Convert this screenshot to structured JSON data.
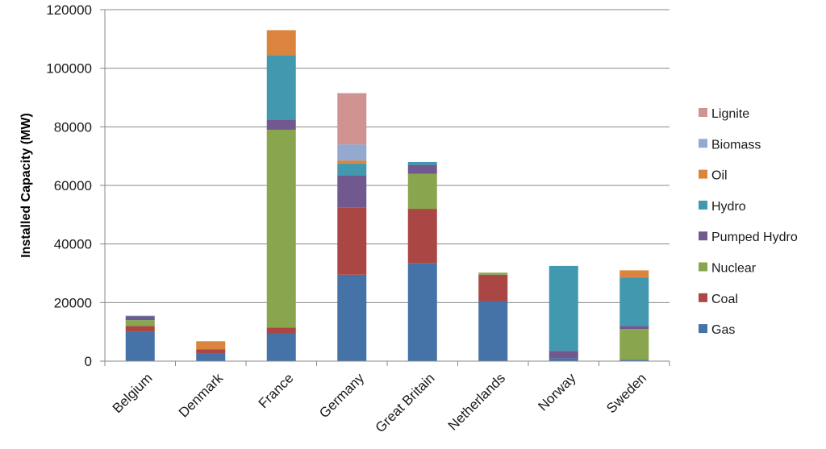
{
  "chart_data": {
    "type": "bar",
    "stacked": true,
    "title": "",
    "xlabel": "",
    "ylabel": "Installed Capacity (MW)",
    "ylim": [
      0,
      120000
    ],
    "yticks": [
      0,
      20000,
      40000,
      60000,
      80000,
      100000,
      120000
    ],
    "grid": true,
    "legend_position": "right",
    "categories": [
      "Belgium",
      "Denmark",
      "France",
      "Germany",
      "Great Britain",
      "Netherlands",
      "Norway",
      "Sweden"
    ],
    "series": [
      {
        "name": "Gas",
        "color": "#4572A7",
        "values": [
          10000,
          2500,
          9500,
          29500,
          33500,
          20500,
          1000,
          500
        ]
      },
      {
        "name": "Coal",
        "color": "#AA4643",
        "values": [
          2000,
          1500,
          2000,
          23000,
          18500,
          9000,
          0,
          0
        ]
      },
      {
        "name": "Nuclear",
        "color": "#89A54E",
        "values": [
          2000,
          0,
          67500,
          0,
          12000,
          700,
          0,
          10500
        ]
      },
      {
        "name": "Pumped Hydro",
        "color": "#71588F",
        "values": [
          1300,
          0,
          3500,
          11000,
          3000,
          0,
          2500,
          1000
        ]
      },
      {
        "name": "Hydro",
        "color": "#4198AF",
        "values": [
          200,
          0,
          22000,
          4000,
          1000,
          0,
          29000,
          16500
        ]
      },
      {
        "name": "Oil",
        "color": "#DB843D",
        "values": [
          0,
          2800,
          8500,
          1000,
          0,
          0,
          0,
          2500
        ]
      },
      {
        "name": "Biomass",
        "color": "#93A9CF",
        "values": [
          0,
          0,
          0,
          5500,
          0,
          0,
          0,
          0
        ]
      },
      {
        "name": "Lignite",
        "color": "#D19392",
        "values": [
          0,
          0,
          0,
          17500,
          0,
          0,
          0,
          0
        ]
      }
    ]
  }
}
